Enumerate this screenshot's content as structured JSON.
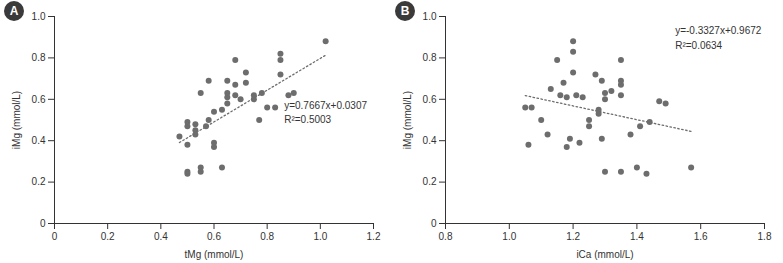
{
  "chart_data": [
    {
      "type": "scatter",
      "title": "A",
      "x_label": "tMg (mmol/L)",
      "y_label": "iMg (mmol/L)",
      "color": "#6d6d6d",
      "marker": "circle",
      "line_style": "dotted",
      "xlim": [
        0,
        1.2
      ],
      "xticks": [
        0,
        0.2,
        0.4,
        0.6,
        0.8,
        {
          "value": 1,
          "label": "1.0"
        },
        1.2
      ],
      "ylim": [
        0,
        1
      ],
      "yticks": [
        0,
        0.2,
        0.4,
        0.6,
        0.8,
        {
          "value": 1,
          "label": "1.0"
        }
      ],
      "x": [
        0.47,
        0.5,
        0.5,
        0.5,
        0.5,
        0.5,
        0.53,
        0.53,
        0.53,
        0.55,
        0.55,
        0.55,
        0.57,
        0.58,
        0.58,
        0.6,
        0.6,
        0.6,
        0.63,
        0.63,
        0.65,
        0.65,
        0.65,
        0.65,
        0.68,
        0.68,
        0.68,
        0.7,
        0.72,
        0.72,
        0.75,
        0.75,
        0.77,
        0.78,
        0.8,
        0.83,
        0.85,
        0.85,
        0.85,
        0.88,
        0.9,
        1.02
      ],
      "y": [
        0.42,
        0.25,
        0.24,
        0.38,
        0.47,
        0.49,
        0.43,
        0.45,
        0.48,
        0.27,
        0.25,
        0.63,
        0.47,
        0.5,
        0.69,
        0.39,
        0.37,
        0.54,
        0.27,
        0.55,
        0.58,
        0.61,
        0.63,
        0.69,
        0.62,
        0.67,
        0.79,
        0.6,
        0.73,
        0.68,
        0.6,
        0.62,
        0.5,
        0.63,
        0.56,
        0.56,
        0.72,
        0.79,
        0.82,
        0.62,
        0.63,
        0.88
      ],
      "trendline": {
        "x": [
          0.47,
          1.02
        ],
        "y": [
          0.391,
          0.813
        ]
      },
      "annotations": [
        "y=0.7667x+0.0307",
        "R²=0.5003"
      ]
    },
    {
      "type": "scatter",
      "title": "B",
      "x_label": "iCa (mmol/L)",
      "y_label": "iMg (mmol/L)",
      "color": "#6d6d6d",
      "marker": "circle",
      "line_style": "dotted",
      "xlim": [
        0.8,
        1.8
      ],
      "xticks": [
        0.8,
        {
          "value": 1,
          "label": "1.0"
        },
        1.2,
        1.4,
        1.6,
        1.8
      ],
      "ylim": [
        0,
        1
      ],
      "yticks": [
        0,
        0.2,
        0.4,
        0.6,
        0.8,
        {
          "value": 1,
          "label": "1.0"
        }
      ],
      "x": [
        1.05,
        1.06,
        1.07,
        1.1,
        1.12,
        1.13,
        1.15,
        1.16,
        1.17,
        1.18,
        1.18,
        1.19,
        1.2,
        1.2,
        1.2,
        1.21,
        1.22,
        1.23,
        1.25,
        1.25,
        1.27,
        1.28,
        1.28,
        1.29,
        1.29,
        1.3,
        1.3,
        1.3,
        1.32,
        1.35,
        1.35,
        1.35,
        1.35,
        1.35,
        1.38,
        1.4,
        1.41,
        1.43,
        1.44,
        1.47,
        1.49,
        1.57
      ],
      "y": [
        0.56,
        0.38,
        0.56,
        0.5,
        0.43,
        0.65,
        0.79,
        0.62,
        0.68,
        0.61,
        0.37,
        0.41,
        0.88,
        0.83,
        0.73,
        0.62,
        0.39,
        0.61,
        0.47,
        0.5,
        0.72,
        0.53,
        0.55,
        0.69,
        0.41,
        0.25,
        0.6,
        0.63,
        0.64,
        0.79,
        0.69,
        0.67,
        0.62,
        0.25,
        0.43,
        0.27,
        0.47,
        0.24,
        0.49,
        0.59,
        0.58,
        0.27
      ],
      "trendline": {
        "x": [
          1.05,
          1.57
        ],
        "y": [
          0.618,
          0.445
        ]
      },
      "annotations": [
        "y=-0.3327x+0.9672",
        "R²=0.0634"
      ]
    }
  ]
}
